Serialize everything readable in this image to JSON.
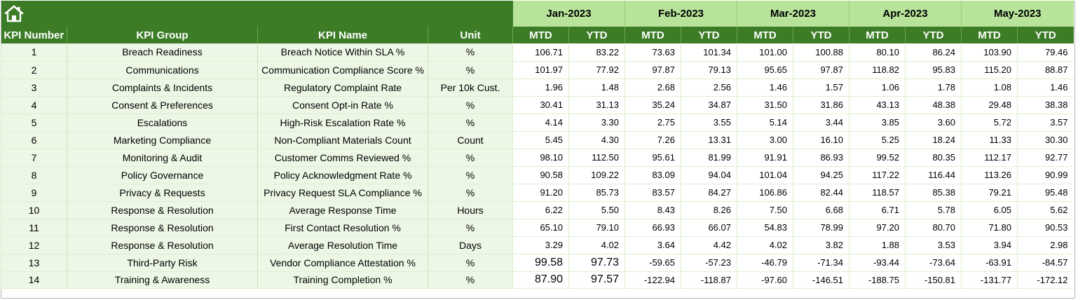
{
  "months": [
    "Jan-2023",
    "Feb-2023",
    "Mar-2023",
    "Apr-2023",
    "May-2023"
  ],
  "headers": {
    "kpi_number": "KPI Number",
    "kpi_group": "KPI Group",
    "kpi_name": "KPI Name",
    "unit": "Unit",
    "mtd": "MTD",
    "ytd": "YTD"
  },
  "home_icon": "home-icon",
  "colors": {
    "header_green": "#3c7c27",
    "month_green": "#b7e39b",
    "label_bg": "#edf7e6"
  },
  "rows": [
    {
      "num": "1",
      "group": "Breach Readiness",
      "name": "Breach Notice Within SLA %",
      "unit": "%",
      "vals": [
        "106.71",
        "83.22",
        "73.63",
        "101.34",
        "101.00",
        "100.88",
        "80.10",
        "86.24",
        "103.90",
        "79.46"
      ]
    },
    {
      "num": "2",
      "group": "Communications",
      "name": "Communication Compliance Score %",
      "unit": "%",
      "vals": [
        "101.97",
        "77.92",
        "97.87",
        "79.13",
        "95.65",
        "97.87",
        "118.82",
        "95.83",
        "115.20",
        "88.87"
      ]
    },
    {
      "num": "3",
      "group": "Complaints & Incidents",
      "name": "Regulatory Complaint Rate",
      "unit": "Per 10k Cust.",
      "vals": [
        "1.96",
        "1.48",
        "2.68",
        "2.56",
        "1.46",
        "1.57",
        "1.06",
        "1.78",
        "1.08",
        "1.46"
      ]
    },
    {
      "num": "4",
      "group": "Consent & Preferences",
      "name": "Consent Opt-in Rate %",
      "unit": "%",
      "vals": [
        "30.41",
        "31.13",
        "35.24",
        "34.87",
        "31.50",
        "31.86",
        "43.13",
        "48.38",
        "29.48",
        "38.38"
      ]
    },
    {
      "num": "5",
      "group": "Escalations",
      "name": "High-Risk Escalation Rate %",
      "unit": "%",
      "vals": [
        "4.14",
        "3.30",
        "2.75",
        "3.55",
        "5.14",
        "3.44",
        "3.85",
        "3.60",
        "5.72",
        "3.57"
      ]
    },
    {
      "num": "6",
      "group": "Marketing Compliance",
      "name": "Non-Compliant Materials Count",
      "unit": "Count",
      "vals": [
        "5.45",
        "4.30",
        "7.26",
        "13.31",
        "3.00",
        "16.10",
        "5.25",
        "18.24",
        "11.33",
        "30.30"
      ]
    },
    {
      "num": "7",
      "group": "Monitoring & Audit",
      "name": "Customer Comms Reviewed %",
      "unit": "%",
      "vals": [
        "98.10",
        "112.50",
        "95.61",
        "81.99",
        "91.91",
        "86.93",
        "99.52",
        "80.35",
        "112.17",
        "92.77"
      ]
    },
    {
      "num": "8",
      "group": "Policy Governance",
      "name": "Policy Acknowledgment Rate %",
      "unit": "%",
      "vals": [
        "90.58",
        "109.22",
        "83.09",
        "94.04",
        "101.04",
        "94.25",
        "117.22",
        "116.44",
        "113.26",
        "90.99"
      ]
    },
    {
      "num": "9",
      "group": "Privacy & Requests",
      "name": "Privacy Request SLA Compliance %",
      "unit": "%",
      "vals": [
        "91.20",
        "85.73",
        "83.57",
        "84.27",
        "106.86",
        "82.44",
        "118.57",
        "85.38",
        "79.21",
        "95.48"
      ]
    },
    {
      "num": "10",
      "group": "Response & Resolution",
      "name": "Average Response Time",
      "unit": "Hours",
      "vals": [
        "6.22",
        "5.50",
        "8.43",
        "8.26",
        "7.50",
        "6.68",
        "6.71",
        "5.78",
        "6.05",
        "5.62"
      ]
    },
    {
      "num": "11",
      "group": "Response & Resolution",
      "name": "First Contact Resolution %",
      "unit": "%",
      "vals": [
        "65.10",
        "79.10",
        "66.93",
        "66.07",
        "54.83",
        "78.99",
        "97.20",
        "80.70",
        "71.80",
        "90.53"
      ]
    },
    {
      "num": "12",
      "group": "Response & Resolution",
      "name": "Average Resolution Time",
      "unit": "Days",
      "vals": [
        "3.29",
        "4.02",
        "3.64",
        "4.42",
        "4.02",
        "3.82",
        "1.88",
        "3.53",
        "3.94",
        "2.98"
      ]
    },
    {
      "num": "13",
      "group": "Third-Party Risk",
      "name": "Vendor Compliance Attestation %",
      "unit": "%",
      "vals": [
        "99.58",
        "97.73",
        "-59.65",
        "-57.23",
        "-46.79",
        "-71.34",
        "-93.44",
        "-73.64",
        "-63.91",
        "-84.57"
      ]
    },
    {
      "num": "14",
      "group": "Training & Awareness",
      "name": "Training Completion %",
      "unit": "%",
      "vals": [
        "87.90",
        "97.57",
        "-122.94",
        "-118.87",
        "-97.60",
        "-146.51",
        "-188.75",
        "-150.81",
        "-131.77",
        "-172.12"
      ]
    }
  ]
}
